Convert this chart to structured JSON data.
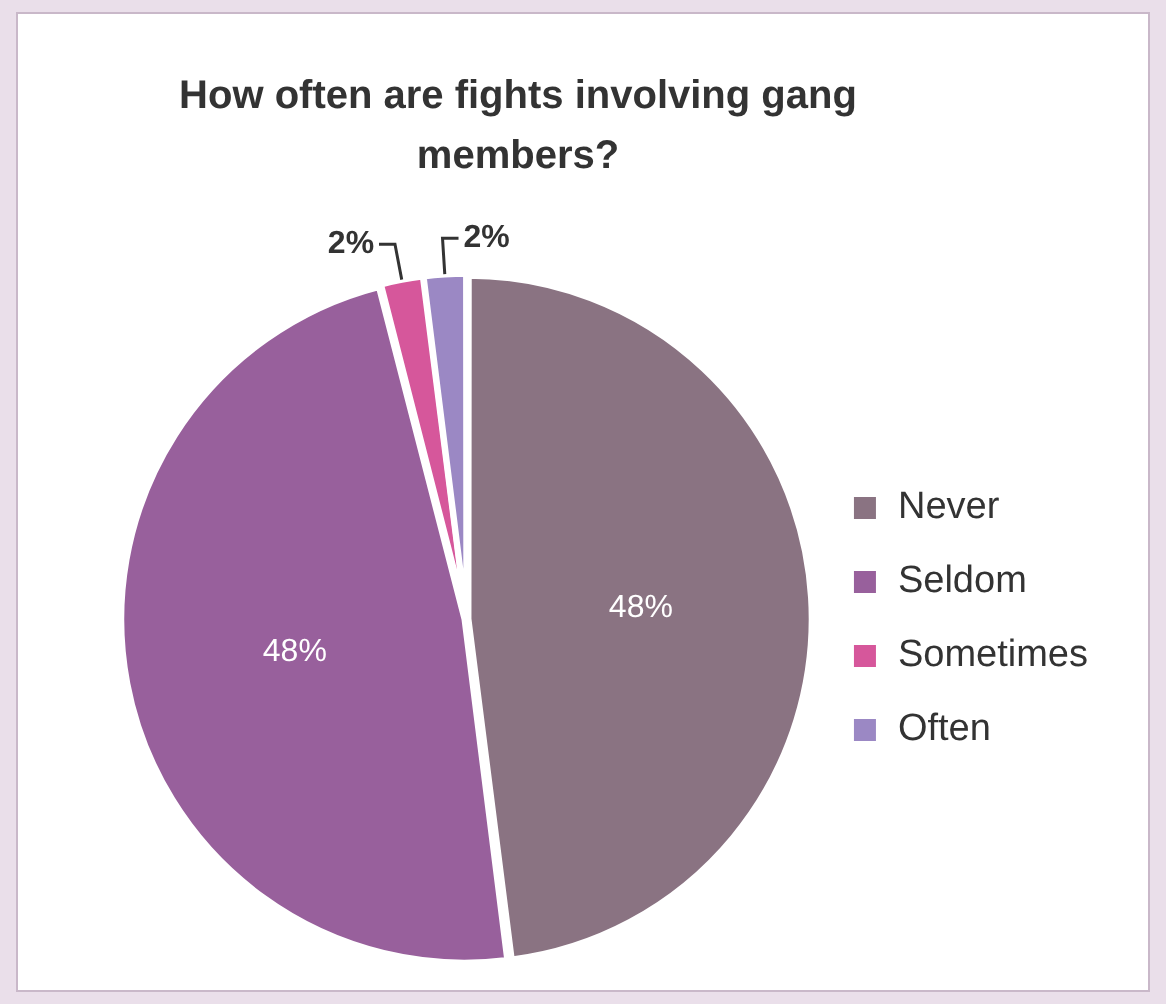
{
  "chart_data": {
    "type": "pie",
    "title": "How often are fights involving gang members?",
    "categories": [
      "Never",
      "Seldom",
      "Sometimes",
      "Often"
    ],
    "values": [
      48,
      48,
      2,
      2
    ],
    "colors": [
      "#8a7382",
      "#98609c",
      "#d6579b",
      "#9b88c4"
    ],
    "value_labels": [
      "48%",
      "48%",
      "2%",
      "2%"
    ],
    "legend": "right"
  }
}
